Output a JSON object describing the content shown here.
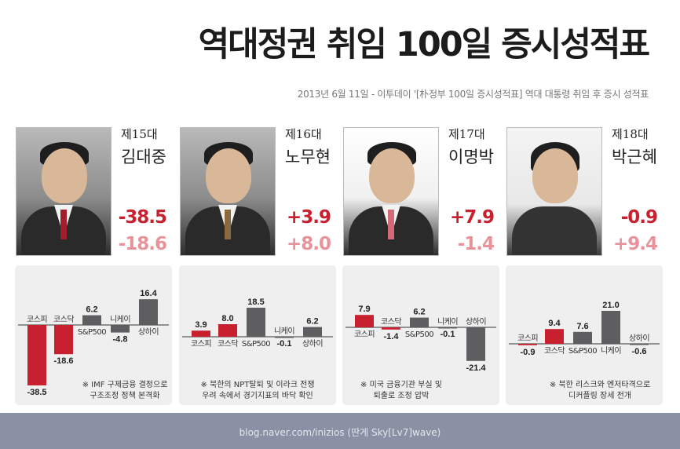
{
  "header": {
    "title": "역대정권 취임 100일 증시성적표",
    "subtitle": "2013년 6월 11일 - 이투데이 '[朴정부 100일 증시성적표] 역대 대통령 취임 후 증시 성적표"
  },
  "presidents": [
    {
      "ordinal": "제15대",
      "name": "김대중",
      "v1": "-38.5",
      "v2": "-18.6",
      "note_lines": [
        "※ IMF 구제금융 결정으로",
        "구조조정 정책 본격화"
      ]
    },
    {
      "ordinal": "제16대",
      "name": "노무현",
      "v1": "+3.9",
      "v2": "+8.0",
      "note_lines": [
        "※ 북한의 NPT탈퇴 및 이라크 전쟁",
        "우려 속에서 경기지표의 바닥 확인"
      ]
    },
    {
      "ordinal": "제17대",
      "name": "이명박",
      "v1": "+7.9",
      "v2": "-1.4",
      "note_lines": [
        "※ 미국 금융기관 부실 및",
        "퇴출로 조정 압박"
      ]
    },
    {
      "ordinal": "제18대",
      "name": "박근혜",
      "v1": "-0.9",
      "v2": "+9.4",
      "note_lines": [
        "※ 북한 리스크와 엔저타격으로",
        "디커플링 장세 전개"
      ]
    }
  ],
  "colors": {
    "kospi": "#c8202e",
    "others": "#5e5e60",
    "value_primary": "#c8202e",
    "value_secondary": "#e8939c",
    "footer": "#8a91a4"
  },
  "chart_data": [
    {
      "type": "bar",
      "title": "제15대 김대중",
      "categories": [
        "코스피",
        "코스닥",
        "S&P500",
        "니케이",
        "상하이"
      ],
      "values": [
        -38.5,
        -18.6,
        6.2,
        -4.8,
        16.4
      ],
      "labels": [
        "-38.5",
        "-18.6",
        "6.2",
        "-4.8",
        "16.4"
      ]
    },
    {
      "type": "bar",
      "title": "제16대 노무현",
      "categories": [
        "코스피",
        "코스닥",
        "S&P500",
        "니케이",
        "상하이"
      ],
      "values": [
        3.9,
        8.0,
        18.5,
        -0.1,
        6.2
      ],
      "labels": [
        "3.9",
        "8.0",
        "18.5",
        "-0.1",
        "6.2"
      ]
    },
    {
      "type": "bar",
      "title": "제17대 이명박",
      "categories": [
        "코스피",
        "코스닥",
        "S&P500",
        "니케이",
        "상하이"
      ],
      "values": [
        7.9,
        -1.4,
        6.2,
        -0.1,
        -21.4
      ],
      "labels": [
        "7.9",
        "-1.4",
        "6.2",
        "-0.1",
        "-21.4"
      ]
    },
    {
      "type": "bar",
      "title": "제18대 박근혜",
      "categories": [
        "코스피",
        "코스닥",
        "S&P500",
        "니케이",
        "상하이"
      ],
      "values": [
        -0.9,
        9.4,
        7.6,
        21.0,
        -0.6
      ],
      "labels": [
        "-0.9",
        "9.4",
        "7.6",
        "21.0",
        "-0.6"
      ]
    }
  ],
  "footer": {
    "credit": "blog.naver.com/inizios  (딴게 Sky[Lv7]wave)"
  }
}
